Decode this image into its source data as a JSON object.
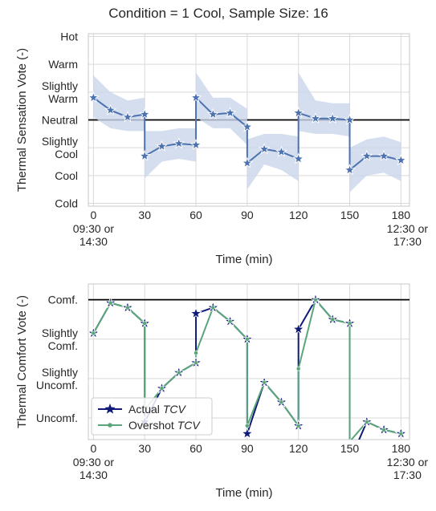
{
  "figure_title": "Condition = 1 Cool, Sample Size: 16",
  "colors": {
    "grid": "#d9d9d9",
    "reference_line": "#000000",
    "tsv_line": "#4c72b0",
    "tsv_band": "#c9d6ea",
    "actual_tcv": "#101a78",
    "overshot_tcv": "#5aa67a"
  },
  "chart_data": [
    {
      "type": "line",
      "title": "",
      "xlabel": "Time (min)",
      "ylabel": "Thermal Sensation Vote (-)",
      "x_ticks": [
        0,
        30,
        60,
        90,
        120,
        150,
        180
      ],
      "x_tick_labels": [
        "0",
        "30",
        "60",
        "90",
        "120",
        "150",
        "180"
      ],
      "x_start_label": [
        "09:30 or",
        "14:30"
      ],
      "x_end_label": [
        "12:30 or",
        "17:30"
      ],
      "xlim": [
        -3,
        185
      ],
      "ylim": [
        -3.1,
        3.1
      ],
      "y_ticks": [
        -3,
        -2,
        -1,
        0,
        1,
        2,
        3
      ],
      "y_tick_labels": [
        [
          "Cold"
        ],
        [
          "Cool"
        ],
        [
          "Slightly",
          "Cool"
        ],
        [
          "Neutral"
        ],
        [
          "Slightly",
          "Warm"
        ],
        [
          "Warm"
        ],
        [
          "Hot"
        ]
      ],
      "grid": true,
      "reference_line": 0,
      "segments": [
        {
          "x": [
            0,
            10,
            20,
            30
          ],
          "y": [
            0.8,
            0.35,
            0.1,
            0.2
          ],
          "lower": [
            0.1,
            -0.3,
            -0.4,
            -0.4
          ],
          "upper": [
            1.6,
            1.0,
            0.7,
            0.8
          ]
        },
        {
          "x": [
            30,
            40,
            50,
            60
          ],
          "y": [
            -1.3,
            -0.95,
            -0.85,
            -0.9
          ],
          "lower": [
            -2.1,
            -1.5,
            -1.4,
            -1.5
          ],
          "upper": [
            -0.4,
            -0.4,
            -0.3,
            -0.3
          ]
        },
        {
          "x": [
            60,
            70,
            80,
            90
          ],
          "y": [
            0.8,
            0.2,
            0.25,
            -0.25
          ],
          "lower": [
            0.1,
            -0.3,
            -0.3,
            -0.9
          ],
          "upper": [
            1.7,
            0.8,
            0.8,
            0.4
          ]
        },
        {
          "x": [
            90,
            100,
            110,
            120
          ],
          "y": [
            -1.55,
            -1.05,
            -1.15,
            -1.4
          ],
          "lower": [
            -2.5,
            -1.6,
            -1.8,
            -2.2
          ],
          "upper": [
            -0.7,
            -0.5,
            -0.5,
            -0.6
          ]
        },
        {
          "x": [
            120,
            130,
            140,
            150
          ],
          "y": [
            0.25,
            0.05,
            0.05,
            0.0
          ],
          "lower": [
            -0.4,
            -0.5,
            -0.5,
            -0.6
          ],
          "upper": [
            1.7,
            0.7,
            0.6,
            0.6
          ]
        },
        {
          "x": [
            150,
            160,
            170,
            180
          ],
          "y": [
            -1.8,
            -1.3,
            -1.3,
            -1.45
          ],
          "lower": [
            -2.6,
            -2.0,
            -1.9,
            -2.2
          ],
          "upper": [
            -1.0,
            -0.7,
            -0.6,
            -0.8
          ]
        }
      ]
    },
    {
      "type": "line",
      "title": "",
      "xlabel": "Time (min)",
      "ylabel": "Thermal Comfort Vote (-)",
      "x_ticks": [
        0,
        30,
        60,
        90,
        120,
        150,
        180
      ],
      "x_tick_labels": [
        "0",
        "30",
        "60",
        "90",
        "120",
        "150",
        "180"
      ],
      "x_start_label": [
        "09:30 or",
        "14:30"
      ],
      "x_end_label": [
        "12:30 or",
        "17:30"
      ],
      "xlim": [
        -3,
        185
      ],
      "ylim": [
        -3.55,
        0.4
      ],
      "y_ticks": [
        -3,
        -2,
        -1,
        0
      ],
      "y_tick_labels": [
        [
          "Uncomf."
        ],
        [
          "Slightly",
          "Uncomf."
        ],
        [
          "Slightly",
          "Comf."
        ],
        [
          "Comf."
        ]
      ],
      "grid": true,
      "reference_line": 0,
      "legend": {
        "placement": "lower-left",
        "entries": [
          {
            "label": "Actual ",
            "italic": "TCV"
          },
          {
            "label": "Overshot ",
            "italic": "TCV"
          }
        ]
      },
      "series": [
        {
          "name": "Actual TCV",
          "segments": [
            {
              "x": [
                0,
                10,
                20,
                30
              ],
              "y": [
                -0.85,
                -0.08,
                -0.2,
                -0.6
              ]
            },
            {
              "x": [
                30,
                40,
                50,
                60
              ],
              "y": [
                -3.1,
                -2.25,
                -1.85,
                -1.6
              ]
            },
            {
              "x": [
                60,
                70,
                80,
                90
              ],
              "y": [
                -0.35,
                -0.2,
                -0.55,
                -1.0
              ]
            },
            {
              "x": [
                90,
                100,
                110,
                120
              ],
              "y": [
                -3.4,
                -2.1,
                -2.6,
                -3.2
              ]
            },
            {
              "x": [
                120,
                130,
                140,
                150
              ],
              "y": [
                -0.75,
                0.0,
                -0.5,
                -0.6
              ]
            },
            {
              "x": [
                150,
                160,
                170,
                180
              ],
              "y": [
                -4.1,
                -3.1,
                -3.3,
                -3.4
              ]
            }
          ]
        },
        {
          "name": "Overshot TCV",
          "segments": [
            {
              "x": [
                0,
                10,
                20,
                30
              ],
              "y": [
                -0.85,
                -0.08,
                -0.2,
                -0.6
              ]
            },
            {
              "x": [
                30,
                40,
                50,
                60
              ],
              "y": [
                -2.8,
                -2.25,
                -1.85,
                -1.6
              ]
            },
            {
              "x": [
                60,
                70,
                80,
                90
              ],
              "y": [
                -1.35,
                -0.2,
                -0.55,
                -1.0
              ]
            },
            {
              "x": [
                90,
                100,
                110,
                120
              ],
              "y": [
                -3.2,
                -2.1,
                -2.6,
                -3.2
              ]
            },
            {
              "x": [
                120,
                130,
                140,
                150
              ],
              "y": [
                -1.75,
                0.0,
                -0.5,
                -0.6
              ]
            },
            {
              "x": [
                150,
                160,
                170,
                180
              ],
              "y": [
                -3.6,
                -3.1,
                -3.3,
                -3.4
              ]
            }
          ]
        }
      ]
    }
  ]
}
